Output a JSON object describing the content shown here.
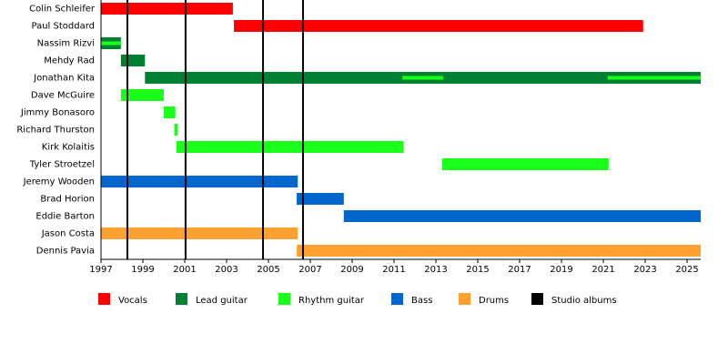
{
  "chart_data": {
    "type": "timeline",
    "categories": [
      "Colin Schleifer",
      "Paul Stoddard",
      "Nassim Rizvi",
      "Mehdy Rad",
      "Jonathan Kita",
      "Dave McGuire",
      "Jimmy Bonasoro",
      "Richard Thurston",
      "Kirk Kolaitis",
      "Tyler Stroetzel",
      "Jeremy Wooden",
      "Brad Horion",
      "Eddie Barton",
      "Jason Costa",
      "Dennis Pavia"
    ],
    "series": [
      {
        "name": "Vocals",
        "color": "#ff0000",
        "segments": [
          {
            "row": 0,
            "start": 1997,
            "end": 2003.3
          },
          {
            "row": 1,
            "start": 2003.35,
            "end": 2022.9
          }
        ]
      },
      {
        "name": "Lead guitar",
        "color": "#008033",
        "segments": [
          {
            "row": 2,
            "start": 1997,
            "end": 1997.95
          },
          {
            "row": 3,
            "start": 1997.95,
            "end": 1999.1
          },
          {
            "row": 4,
            "start": 1999.1,
            "end": 2025.65
          }
        ]
      },
      {
        "name": "Rhythm guitar",
        "color": "#1aff1a",
        "segments": [
          {
            "row": 2,
            "start": 1997,
            "end": 1997.95
          },
          {
            "row": 4,
            "start": 2011.4,
            "end": 2013.35
          },
          {
            "row": 4,
            "start": 2021.2,
            "end": 2025.65
          },
          {
            "row": 5,
            "start": 1997.95,
            "end": 2000
          },
          {
            "row": 6,
            "start": 2000,
            "end": 2000.55
          },
          {
            "row": 7,
            "start": 2000.5,
            "end": 2000.65
          },
          {
            "row": 8,
            "start": 2000.6,
            "end": 2011.45
          },
          {
            "row": 9,
            "start": 2013.3,
            "end": 2021.25
          }
        ]
      },
      {
        "name": "Bass",
        "color": "#0066cc",
        "segments": [
          {
            "row": 10,
            "start": 1997,
            "end": 2006.4
          },
          {
            "row": 11,
            "start": 2006.35,
            "end": 2008.6
          },
          {
            "row": 12,
            "start": 2008.6,
            "end": 2025.65
          }
        ]
      },
      {
        "name": "Drums",
        "color": "#ffa030",
        "segments": [
          {
            "row": 13,
            "start": 1997,
            "end": 2006.4
          },
          {
            "row": 14,
            "start": 2006.35,
            "end": 2025.65
          }
        ]
      },
      {
        "name": "Studio albums",
        "color": "#000000",
        "lines": [
          1998.26,
          2001.04,
          2004.74,
          2006.65
        ]
      }
    ],
    "xlim": [
      1997,
      2025.65
    ],
    "xticks": [
      1997,
      1999,
      2001,
      2003,
      2005,
      2007,
      2009,
      2011,
      2013,
      2015,
      2017,
      2019,
      2021,
      2023,
      2025
    ]
  }
}
